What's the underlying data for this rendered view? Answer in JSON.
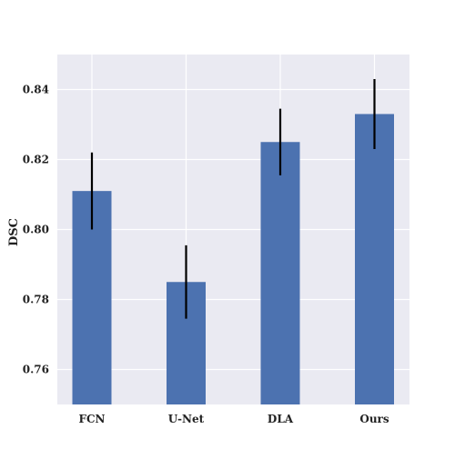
{
  "chart_data": {
    "type": "bar",
    "title": "",
    "xlabel": "",
    "ylabel": "DSC",
    "categories": [
      "FCN",
      "U-Net",
      "DLA",
      "Ours"
    ],
    "values": [
      0.811,
      0.785,
      0.825,
      0.833
    ],
    "error": [
      0.011,
      0.0105,
      0.0095,
      0.01
    ],
    "ylim": [
      0.75,
      0.85
    ],
    "yticks": [
      0.76,
      0.78,
      0.8,
      0.82,
      0.84
    ],
    "ytick_labels": [
      "0.76",
      "0.78",
      "0.80",
      "0.82",
      "0.84"
    ],
    "grid": true,
    "legend": "none",
    "colors": {
      "background": "#EAEAF2",
      "grid": "#FFFFFF",
      "bar": "#4C72B0",
      "error_bar": "#000000"
    }
  }
}
